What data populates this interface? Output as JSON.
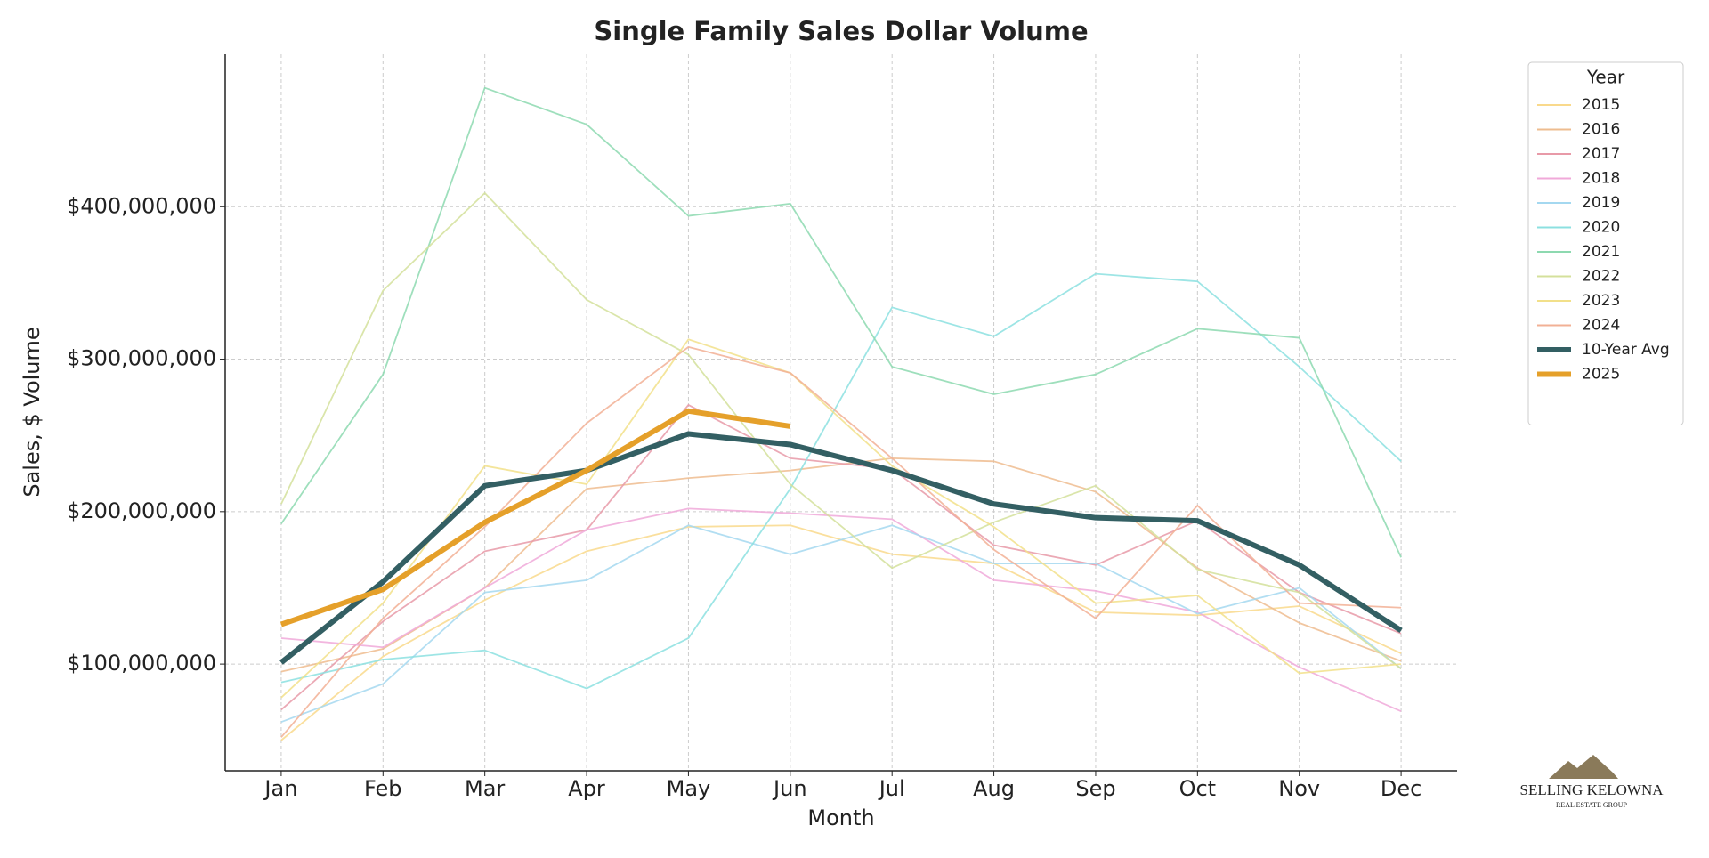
{
  "chart_data": {
    "type": "line",
    "title": "Single Family Sales Dollar Volume",
    "x_label": "Month",
    "y_label": "Sales, $ Volume",
    "legend_title": "Year",
    "legend": "outside-upper-right",
    "grid": true,
    "categories": [
      "Jan",
      "Feb",
      "Mar",
      "Apr",
      "May",
      "Jun",
      "Jul",
      "Aug",
      "Sep",
      "Oct",
      "Nov",
      "Dec"
    ],
    "ylim": [
      30000000,
      500000000
    ],
    "yticks": [
      {
        "value": 100000000,
        "label": "$100,000,000"
      },
      {
        "value": 200000000,
        "label": "$200,000,000"
      },
      {
        "value": 300000000,
        "label": "$300,000,000"
      },
      {
        "value": 400000000,
        "label": "$400,000,000"
      }
    ],
    "series": [
      {
        "name": "2015",
        "color": "#f9d98c",
        "values": [
          50000000,
          105000000,
          142000000,
          174000000,
          190000000,
          191000000,
          172000000,
          166000000,
          134000000,
          132000000,
          138000000,
          107000000
        ]
      },
      {
        "name": "2016",
        "color": "#eebc8f",
        "values": [
          95000000,
          110000000,
          150000000,
          215000000,
          222000000,
          227000000,
          235000000,
          233000000,
          213000000,
          163000000,
          127000000,
          102000000
        ]
      },
      {
        "name": "2017",
        "color": "#e89aa8",
        "values": [
          70000000,
          128000000,
          174000000,
          188000000,
          270000000,
          235000000,
          228000000,
          178000000,
          165000000,
          194000000,
          147000000,
          120000000
        ]
      },
      {
        "name": "2018",
        "color": "#f0a9d9",
        "values": [
          117000000,
          111000000,
          150000000,
          188000000,
          202000000,
          199000000,
          195000000,
          155000000,
          148000000,
          134000000,
          98000000,
          69000000
        ]
      },
      {
        "name": "2019",
        "color": "#a4d8f0",
        "values": [
          62000000,
          87000000,
          147000000,
          155000000,
          191000000,
          172000000,
          191000000,
          166000000,
          166000000,
          133000000,
          150000000,
          97000000
        ]
      },
      {
        "name": "2020",
        "color": "#8ce0e0",
        "values": [
          88000000,
          103000000,
          109000000,
          84000000,
          117000000,
          215000000,
          334000000,
          315000000,
          356000000,
          351000000,
          295000000,
          233000000
        ]
      },
      {
        "name": "2021",
        "color": "#8dd9b0",
        "values": [
          192000000,
          290000000,
          478000000,
          454000000,
          394000000,
          402000000,
          295000000,
          277000000,
          290000000,
          320000000,
          314000000,
          170000000
        ]
      },
      {
        "name": "2022",
        "color": "#d4e09b",
        "values": [
          205000000,
          345000000,
          409000000,
          339000000,
          303000000,
          218000000,
          163000000,
          193000000,
          217000000,
          162000000,
          147000000,
          97000000
        ]
      },
      {
        "name": "2023",
        "color": "#f2e08a",
        "values": [
          78000000,
          140000000,
          230000000,
          218000000,
          313000000,
          291000000,
          230000000,
          190000000,
          140000000,
          145000000,
          94000000,
          100000000
        ]
      },
      {
        "name": "2024",
        "color": "#f2b095",
        "values": [
          52000000,
          130000000,
          190000000,
          258000000,
          308000000,
          291000000,
          235000000,
          175000000,
          130000000,
          204000000,
          140000000,
          137000000
        ]
      },
      {
        "name": "10-Year Avg",
        "color": "#335f63",
        "width": "thick",
        "values": [
          101000000,
          154000000,
          217000000,
          227000000,
          251000000,
          244000000,
          227000000,
          205000000,
          196000000,
          194000000,
          165000000,
          122000000
        ]
      },
      {
        "name": "2025",
        "color": "#e5a02a",
        "width": "thick",
        "values": [
          126000000,
          149000000,
          193000000,
          227000000,
          266000000,
          256000000,
          null,
          null,
          null,
          null,
          null,
          null
        ]
      }
    ]
  },
  "logo": {
    "name": "SELLING KELOWNA",
    "tagline": "REAL ESTATE GROUP"
  }
}
